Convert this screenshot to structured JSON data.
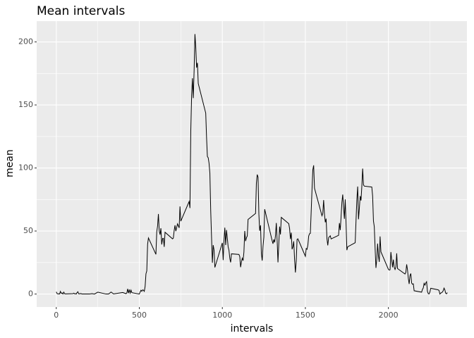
{
  "chart_data": {
    "type": "line",
    "title": "Mean intervals",
    "xlabel": "intervals",
    "ylabel": "mean",
    "x": [
      0,
      5,
      10,
      15,
      20,
      25,
      30,
      35,
      40,
      45,
      50,
      55,
      100,
      105,
      110,
      115,
      120,
      125,
      130,
      135,
      140,
      145,
      150,
      155,
      200,
      215,
      230,
      250,
      300,
      315,
      330,
      345,
      400,
      420,
      425,
      430,
      435,
      440,
      445,
      450,
      455,
      500,
      505,
      510,
      515,
      520,
      525,
      530,
      535,
      540,
      545,
      550,
      555,
      600,
      605,
      610,
      615,
      620,
      625,
      630,
      635,
      640,
      645,
      650,
      655,
      700,
      705,
      710,
      715,
      720,
      730,
      740,
      745,
      750,
      800,
      805,
      810,
      815,
      820,
      825,
      830,
      835,
      840,
      845,
      850,
      855,
      900,
      905,
      910,
      915,
      920,
      925,
      930,
      935,
      940,
      945,
      950,
      955,
      1000,
      1005,
      1010,
      1015,
      1020,
      1025,
      1030,
      1035,
      1040,
      1045,
      1050,
      1055,
      1100,
      1105,
      1110,
      1115,
      1120,
      1125,
      1130,
      1135,
      1140,
      1145,
      1150,
      1155,
      1200,
      1205,
      1210,
      1215,
      1220,
      1225,
      1230,
      1235,
      1240,
      1245,
      1250,
      1255,
      1300,
      1305,
      1310,
      1315,
      1320,
      1325,
      1330,
      1335,
      1340,
      1345,
      1350,
      1355,
      1400,
      1405,
      1410,
      1415,
      1420,
      1425,
      1430,
      1435,
      1440,
      1445,
      1450,
      1455,
      1500,
      1505,
      1510,
      1515,
      1520,
      1525,
      1530,
      1535,
      1540,
      1545,
      1550,
      1555,
      1600,
      1605,
      1610,
      1615,
      1620,
      1625,
      1630,
      1635,
      1640,
      1645,
      1650,
      1655,
      1700,
      1705,
      1710,
      1715,
      1720,
      1725,
      1730,
      1735,
      1740,
      1745,
      1750,
      1755,
      1800,
      1805,
      1810,
      1815,
      1820,
      1825,
      1830,
      1835,
      1840,
      1845,
      1850,
      1855,
      1900,
      1905,
      1910,
      1915,
      1920,
      1925,
      1930,
      1935,
      1940,
      1945,
      1950,
      1955,
      2000,
      2005,
      2010,
      2015,
      2020,
      2025,
      2030,
      2035,
      2040,
      2045,
      2050,
      2055,
      2100,
      2105,
      2110,
      2115,
      2120,
      2125,
      2130,
      2135,
      2140,
      2145,
      2150,
      2155,
      2200,
      2205,
      2210,
      2215,
      2220,
      2225,
      2230,
      2235,
      2240,
      2245,
      2250,
      2255,
      2300,
      2305,
      2310,
      2315,
      2320,
      2325,
      2330,
      2335,
      2340,
      2345,
      2350,
      2355
    ],
    "series": [
      {
        "color": "#000000",
        "values": [
          1.7,
          0.3,
          0.1,
          0.2,
          0.1,
          2.1,
          0.5,
          0.9,
          0,
          1.5,
          0.3,
          0.1,
          0.3,
          0.7,
          0.2,
          0.3,
          0,
          1.1,
          1.8,
          0.2,
          0.2,
          0.4,
          0.3,
          0,
          0,
          0.3,
          0,
          1.5,
          0,
          0,
          1.6,
          0.1,
          1.2,
          0.3,
          0.9,
          4.1,
          0.7,
          3.5,
          0.8,
          3.1,
          1.1,
          0,
          1.6,
          3,
          2.2,
          3.3,
          3,
          2.1,
          6.1,
          16,
          18.3,
          39.5,
          44.5,
          31.5,
          49.3,
          53.8,
          63.5,
          50,
          47.1,
          52.2,
          39.3,
          44,
          44.2,
          37.4,
          49,
          43.8,
          44.4,
          50.5,
          54.5,
          49.9,
          55.7,
          52.5,
          69.5,
          57.8,
          73.4,
          68.2,
          129.4,
          157.5,
          171.2,
          155.4,
          177.3,
          206.2,
          195.9,
          179.6,
          183.4,
          167,
          143.5,
          124,
          109.1,
          108.1,
          103.7,
          95.9,
          66.2,
          45.2,
          24.8,
          38.8,
          34.98,
          21.1,
          40.6,
          26.9,
          42.4,
          52.7,
          38.9,
          50.8,
          44.3,
          37.4,
          34.7,
          28.3,
          25.1,
          31.9,
          31.4,
          29.7,
          21.3,
          25.5,
          28.4,
          26.5,
          33.4,
          50,
          42,
          44.6,
          46,
          59.2,
          63.9,
          87.7,
          94.8,
          92.8,
          63.4,
          50.2,
          54.5,
          32.4,
          26.5,
          37.7,
          45.1,
          67.3,
          42.3,
          39.9,
          43.3,
          40.98,
          46.2,
          56.4,
          42.8,
          25.1,
          39.97,
          53.5,
          47.3,
          60.8,
          55.8,
          51.96,
          43.6,
          48.7,
          35.5,
          37.5,
          41.8,
          27.5,
          17.1,
          26.2,
          43.3,
          43.8,
          30,
          36.1,
          35.5,
          38.8,
          46,
          47.8,
          48.1,
          65.3,
          82.9,
          98.7,
          102.1,
          83.96,
          62.1,
          64.1,
          74.5,
          63.2,
          56.9,
          59.8,
          43.9,
          38.6,
          44.7,
          45.5,
          46.2,
          43.7,
          46.6,
          56.3,
          50.7,
          61.2,
          72.7,
          78.9,
          68.9,
          59.7,
          75.1,
          56.5,
          34.8,
          37.5,
          40.7,
          58,
          74.7,
          85.3,
          59.3,
          67.8,
          77.7,
          74.2,
          85.3,
          99.5,
          86.6,
          85.6,
          84.9,
          77.8,
          58,
          53.4,
          36.3,
          20.7,
          27.4,
          40,
          30.2,
          25.5,
          45.7,
          33.5,
          19.6,
          19,
          19.3,
          33.3,
          26.8,
          21.2,
          27.3,
          21.3,
          19.5,
          21.3,
          32.3,
          20.2,
          15.9,
          17.2,
          23.5,
          19.2,
          12.5,
          8,
          14.7,
          16.3,
          8.7,
          7.8,
          8.1,
          2.6,
          1.5,
          3.7,
          4.8,
          8.5,
          7.1,
          8.7,
          9.8,
          2.2,
          0.3,
          0.1,
          1.6,
          4.6,
          3.3,
          2.8,
          0,
          0.8,
          1,
          1.6,
          2.6,
          4.7,
          3.3,
          0.6,
          0.2,
          1.1
        ]
      }
    ],
    "xlim": [
      -118,
      2473
    ],
    "ylim": [
      -10.3,
      216.5
    ],
    "xticks": [
      0,
      500,
      1000,
      1500,
      2000
    ],
    "yticks": [
      0,
      50,
      100,
      150,
      200
    ],
    "xminor": [
      250,
      750,
      1250,
      1750,
      2250
    ],
    "yminor": [
      25,
      75,
      125,
      175
    ],
    "grid": true,
    "panel_color": "#ebebeb"
  }
}
